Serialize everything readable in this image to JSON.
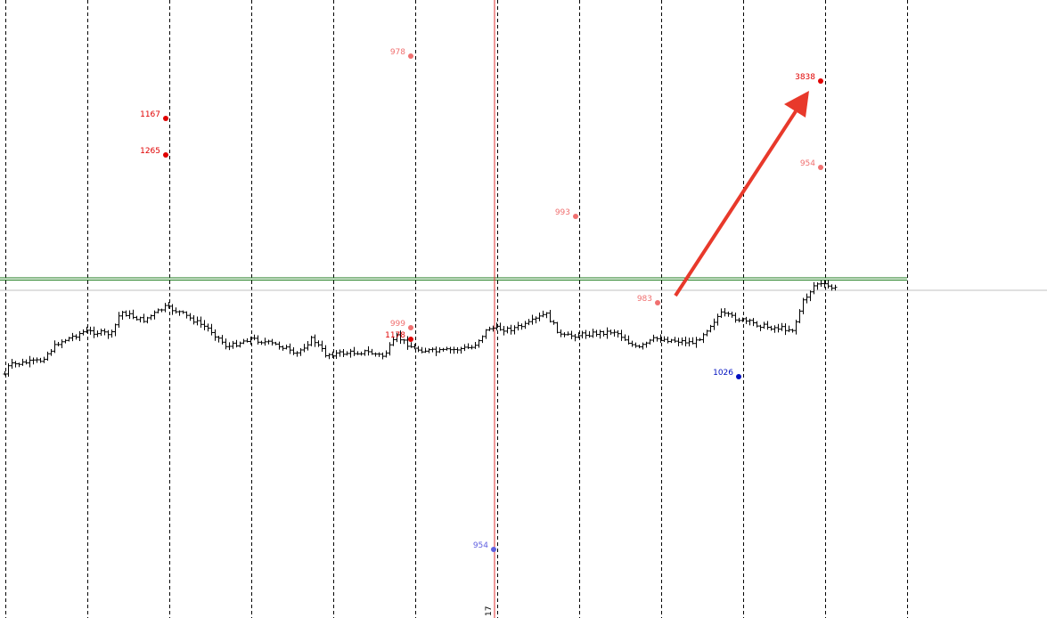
{
  "chart_data": {
    "type": "ohlc",
    "title": "",
    "grid": "vertical dashed",
    "colors": {
      "bars": "#000000",
      "level_line": "#1a7a1a",
      "price_line": "#c0c0c0",
      "cursor_line": "#e03030",
      "arrow": "#e8392b"
    },
    "series_levels": [
      280,
      290,
      295,
      315,
      328,
      325,
      350,
      340,
      355,
      350,
      330,
      310,
      320,
      310,
      300,
      320,
      302,
      305,
      300,
      322,
      308,
      305,
      310,
      332,
      330,
      335,
      348,
      322,
      325,
      328,
      308,
      320,
      315,
      348,
      338,
      333,
      330,
      360,
      382,
      378,
      373,
      377
    ],
    "markers": [
      {
        "label": "1167",
        "color": "#e00000"
      },
      {
        "label": "1265",
        "color": "#e00000"
      },
      {
        "label": "978",
        "color": "#f07070"
      },
      {
        "label": "993",
        "color": "#f07070"
      },
      {
        "label": "983",
        "color": "#f07070"
      },
      {
        "label": "999",
        "color": "#f07070"
      },
      {
        "label": "1178",
        "color": "#e00000"
      },
      {
        "label": "3838",
        "color": "#e00000"
      },
      {
        "label": "954",
        "color": "#f07070"
      },
      {
        "label": "1026",
        "color": "#0010c0"
      },
      {
        "label": "954",
        "color": "#6060e0"
      }
    ],
    "cursor_label": "17"
  }
}
